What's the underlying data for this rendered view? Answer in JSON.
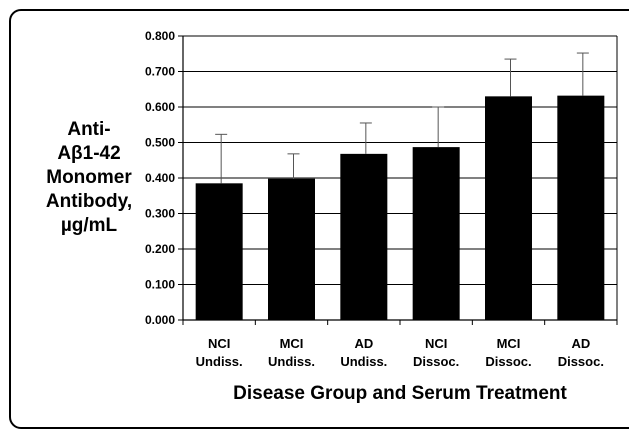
{
  "chart_data": {
    "type": "bar",
    "title": "",
    "ylabel": [
      "Anti-",
      "Aβ1-42",
      "Monomer",
      "Antibody,",
      "µg/mL"
    ],
    "xlabel": "Disease Group and Serum Treatment",
    "categories": [
      [
        "NCI",
        "Undiss."
      ],
      [
        "MCI",
        "Undiss."
      ],
      [
        "AD",
        "Undiss."
      ],
      [
        "NCI",
        "Dissoc."
      ],
      [
        "MCI",
        "Dissoc."
      ],
      [
        "AD",
        "Dissoc."
      ]
    ],
    "values": [
      0.385,
      0.398,
      0.468,
      0.487,
      0.63,
      0.632
    ],
    "error_upper": [
      0.138,
      0.07,
      0.087,
      0.113,
      0.105,
      0.12
    ],
    "ylim": [
      0,
      0.8
    ],
    "yticks": [
      "0.000",
      "0.100",
      "0.200",
      "0.300",
      "0.400",
      "0.500",
      "0.600",
      "0.700",
      "0.800"
    ],
    "grid": true,
    "colors": {
      "bar": "#000000",
      "grid": "#000000",
      "error": "#555555"
    }
  }
}
